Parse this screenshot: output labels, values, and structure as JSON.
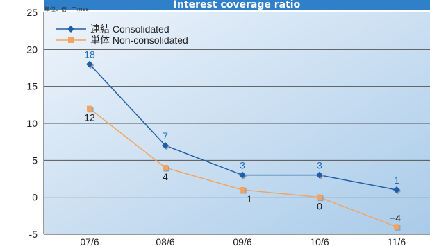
{
  "chart_data": {
    "type": "line",
    "title": "Interest coverage ratio",
    "unit_label": "単位：倍　Times",
    "categories": [
      "07/6",
      "08/6",
      "09/6",
      "10/6",
      "11/6"
    ],
    "ylim": [
      -5,
      25
    ],
    "yticks": [
      "25",
      "20",
      "15",
      "10",
      "5",
      "0",
      "-5"
    ],
    "grid": true,
    "legend_position": "top-left",
    "series": [
      {
        "name": "連結  Consolidated",
        "values": [
          18,
          7,
          3,
          3,
          1
        ],
        "labels": [
          "18",
          "7",
          "3",
          "3",
          "1"
        ],
        "color": "#1f5fa8",
        "marker": "diamond",
        "label_position": "above"
      },
      {
        "name": "単体  Non-consolidated",
        "values": [
          12,
          4,
          1,
          0,
          -4
        ],
        "labels": [
          "12",
          "4",
          "1",
          "0",
          "−4"
        ],
        "color": "#f4a460",
        "marker": "square",
        "label_position": "below-except-last"
      }
    ]
  },
  "colors": {
    "title_band": "#2f7fc9",
    "title_text": "#ffffff",
    "plot_bg_light": "#eef4fb",
    "plot_bg_dark": "#a9cbe9",
    "gridline": "#555555",
    "consolidated_label": "#1f6fb8",
    "nonconsolidated_label": "#222222"
  }
}
